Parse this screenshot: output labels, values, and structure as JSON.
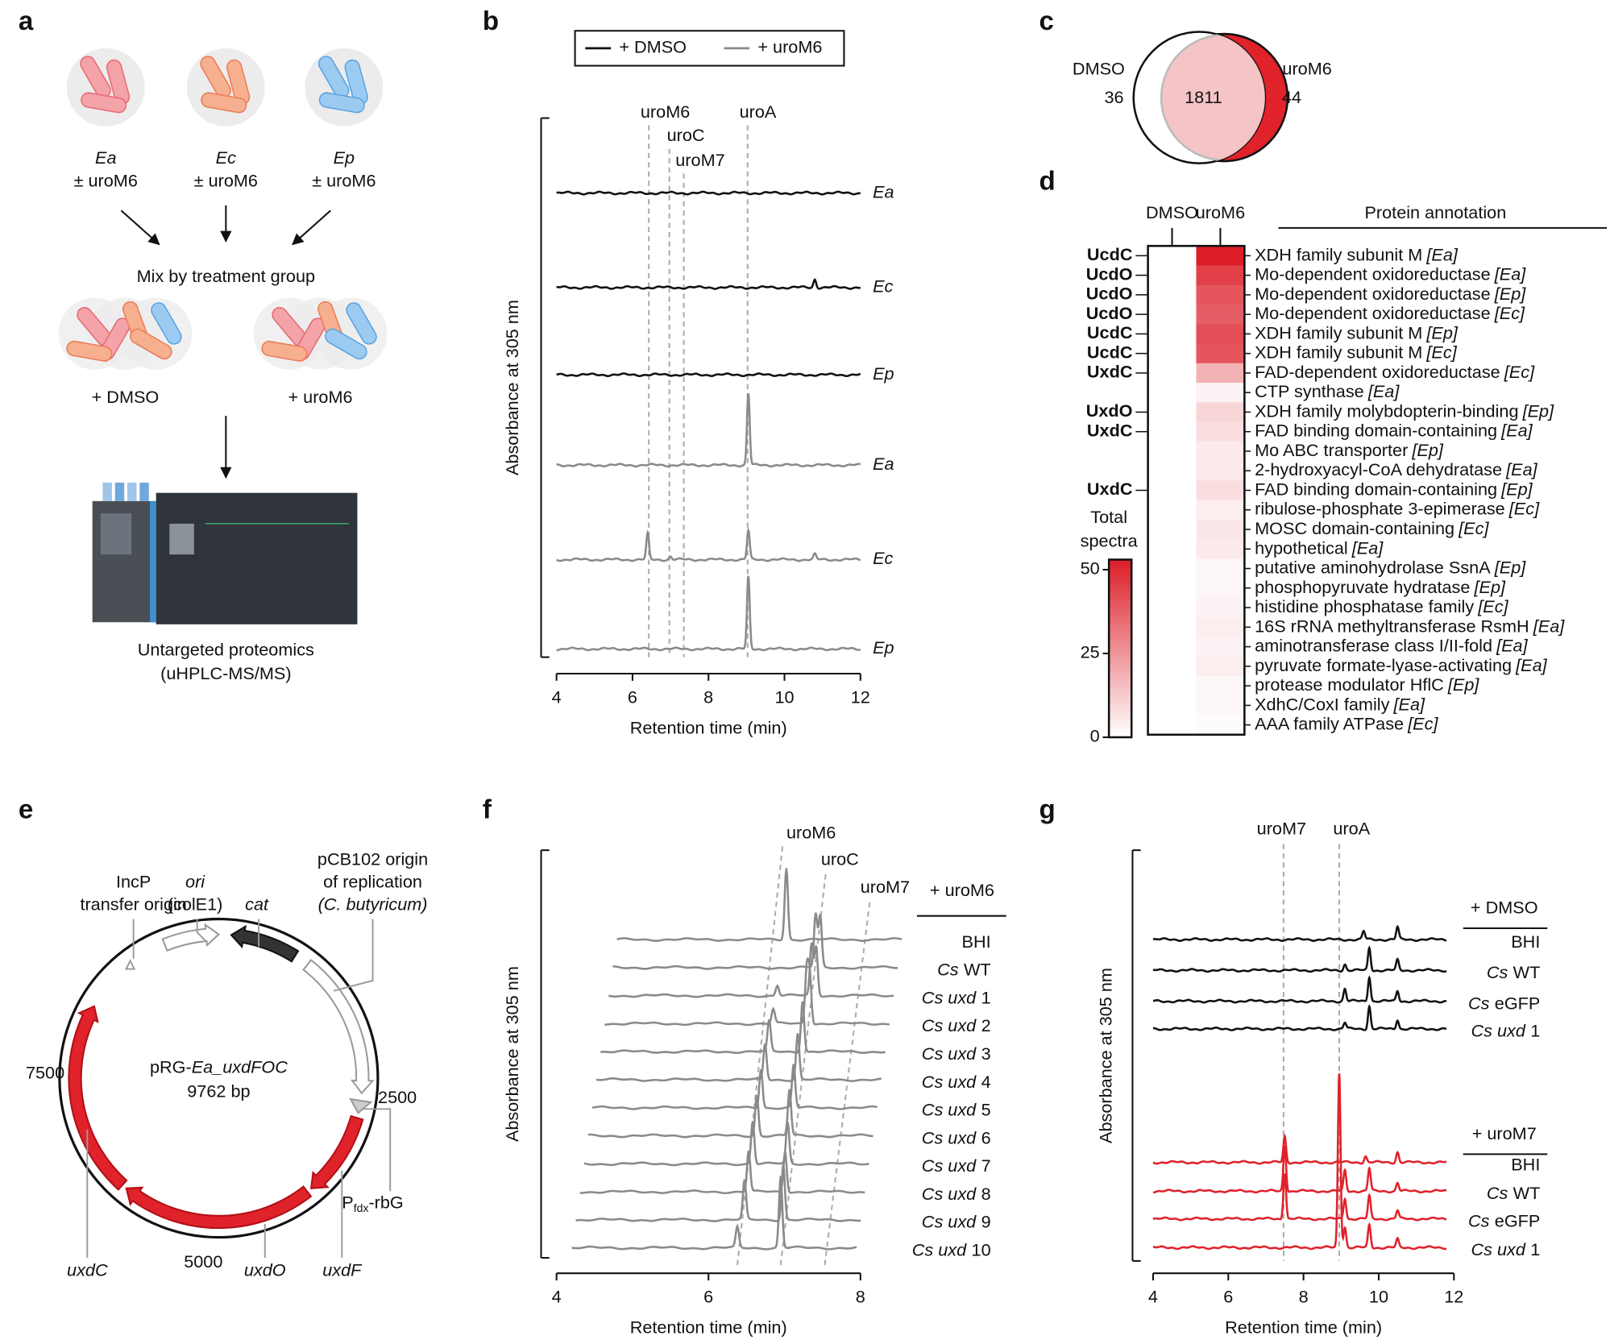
{
  "panels": {
    "a": {
      "letter": "a",
      "strains": [
        {
          "name": "Ea",
          "treatment": "± uroM6"
        },
        {
          "name": "Ec",
          "treatment": "± uroM6"
        },
        {
          "name": "Ep",
          "treatment": "± uroM6"
        }
      ],
      "mix_label": "Mix by treatment group",
      "groups": [
        "+ DMSO",
        "+ uroM6"
      ],
      "method": [
        "Untargeted proteomics",
        "(uHPLC-MS/MS)"
      ]
    },
    "b": {
      "letter": "b",
      "legend": [
        {
          "label": "+ DMSO",
          "color": "#111111"
        },
        {
          "label": "+ uroM6",
          "color": "#8a8a8a"
        }
      ],
      "ylabel": "Absorbance at 305 nm",
      "xlabel": "Retention time (min)",
      "xlim": [
        4,
        12
      ],
      "xticks": [
        4,
        6,
        8,
        10,
        12
      ],
      "trace_range": [
        4,
        12
      ],
      "markers": [
        {
          "label": "uroM6",
          "x": 6.43
        },
        {
          "label": "uroC",
          "x": 6.97
        },
        {
          "label": "uroM7",
          "x": 7.35
        },
        {
          "label": "uroA",
          "x": 9.03
        }
      ],
      "traces": [
        {
          "label": "Ea",
          "group": 0,
          "peaks": []
        },
        {
          "label": "Ec",
          "group": 0,
          "peaks": [
            [
              10.8,
              8
            ]
          ]
        },
        {
          "label": "Ep",
          "group": 0,
          "peaks": []
        },
        {
          "label": "Ea",
          "group": 1,
          "peaks": [
            [
              9.05,
              70
            ]
          ]
        },
        {
          "label": "Ec",
          "group": 1,
          "peaks": [
            [
              6.4,
              25
            ],
            [
              7.0,
              3
            ],
            [
              9.05,
              28
            ],
            [
              10.8,
              5
            ]
          ]
        },
        {
          "label": "Ep",
          "group": 1,
          "peaks": [
            [
              9.05,
              70
            ]
          ]
        }
      ]
    },
    "c": {
      "letter": "c",
      "left_label": "DMSO",
      "right_label": "uroM6",
      "left_only": 36,
      "shared": 1811,
      "right_only": 44
    },
    "d": {
      "letter": "d",
      "columns": [
        "DMSO",
        "uroM6"
      ],
      "annotation_header": "Protein annotation",
      "colorbar": {
        "label": [
          "Total",
          "spectra"
        ],
        "lim": [
          0,
          53
        ],
        "ticks": [
          0,
          25,
          50
        ],
        "color": "#dc1e28"
      },
      "rows": [
        {
          "gene": "UcdC",
          "gene_color": "#3b4a5a",
          "name": "XDH family subunit M",
          "species": "[Ea]",
          "values": [
            0,
            53
          ]
        },
        {
          "gene": "UcdO",
          "gene_color": "#3b4a5a",
          "name": "Mo-dependent oxidoreductase",
          "species": "[Ea]",
          "values": [
            0,
            45
          ]
        },
        {
          "gene": "UcdO",
          "gene_color": "#3b4a5a",
          "name": "Mo-dependent oxidoreductase",
          "species": "[Ep]",
          "values": [
            0,
            40
          ]
        },
        {
          "gene": "UcdO",
          "gene_color": "#3b4a5a",
          "name": "Mo-dependent oxidoreductase",
          "species": "[Ec]",
          "values": [
            0,
            38
          ]
        },
        {
          "gene": "UcdC",
          "gene_color": "#3b4a5a",
          "name": "XDH family subunit M",
          "species": "[Ep]",
          "values": [
            0,
            42
          ]
        },
        {
          "gene": "UcdC",
          "gene_color": "#3b4a5a",
          "name": "XDH family subunit M",
          "species": "[Ec]",
          "values": [
            0,
            40
          ]
        },
        {
          "gene": "UxdC",
          "gene_color": "#e0222a",
          "name": "FAD-dependent oxidoreductase",
          "species": "[Ec]",
          "values": [
            0,
            18
          ]
        },
        {
          "name": "CTP synthase",
          "species": "[Ea]",
          "values": [
            0,
            3
          ]
        },
        {
          "gene": "UxdO",
          "gene_color": "#e0222a",
          "name": "XDH family molybdopterin-binding",
          "species": "[Ep]",
          "values": [
            0,
            10
          ]
        },
        {
          "gene": "UxdC",
          "gene_color": "#e0222a",
          "name": "FAD binding domain-containing",
          "species": "[Ea]",
          "values": [
            0,
            8
          ]
        },
        {
          "name": "Mo ABC transporter",
          "species": "[Ep]",
          "values": [
            0,
            5
          ]
        },
        {
          "name": "2-hydroxyacyl-CoA dehydratase",
          "species": "[Ea]",
          "values": [
            0,
            5
          ]
        },
        {
          "gene": "UxdC",
          "gene_color": "#e0222a",
          "name": "FAD binding domain-containing",
          "species": "[Ep]",
          "values": [
            0,
            8
          ]
        },
        {
          "name": "ribulose-phosphate 3-epimerase",
          "species": "[Ec]",
          "values": [
            0,
            4
          ]
        },
        {
          "name": "MOSC domain-containing",
          "species": "[Ec]",
          "values": [
            0,
            6
          ]
        },
        {
          "name": "hypothetical",
          "species": "[Ea]",
          "values": [
            0,
            5
          ]
        },
        {
          "name": "putative aminohydrolase SsnA",
          "species": "[Ep]",
          "values": [
            0,
            2
          ]
        },
        {
          "name": "phosphopyruvate hydratase",
          "species": "[Ep]",
          "values": [
            0,
            2
          ]
        },
        {
          "name": "histidine phosphatase family",
          "species": "[Ec]",
          "values": [
            0,
            3
          ]
        },
        {
          "name": "16S rRNA methyltransferase RsmH",
          "species": "[Ea]",
          "values": [
            0,
            4
          ]
        },
        {
          "name": "aminotransferase class I/II-fold",
          "species": "[Ea]",
          "values": [
            0,
            3
          ]
        },
        {
          "name": "pyruvate formate-lyase-activating",
          "species": "[Ea]",
          "values": [
            0,
            4
          ]
        },
        {
          "name": "protease modulator HflC",
          "species": "[Ep]",
          "values": [
            0,
            2
          ]
        },
        {
          "name": "XdhC/CoxI family",
          "species": "[Ea]",
          "values": [
            0,
            2
          ]
        },
        {
          "name": "AAA family ATPase",
          "species": "[Ec]",
          "values": [
            0,
            1
          ]
        }
      ]
    },
    "e": {
      "letter": "e",
      "plasmid": {
        "prefix": "pRG-",
        "italic": "Ea_uxdFOC",
        "size": "9762 bp"
      },
      "scale": [
        "2500",
        "5000",
        "7500"
      ],
      "features": {
        "incp": [
          "IncP",
          "transfer origin"
        ],
        "ori": [
          "ori",
          "(colE1)"
        ],
        "cat": "cat",
        "pcb": [
          "pCB102 origin",
          "of replication",
          "(C. butyricum)"
        ],
        "pfdx": [
          "P",
          "fdx",
          "-rbG"
        ],
        "uxdC": "uxdC",
        "uxdO": "uxdO",
        "uxdF": "uxdF"
      }
    },
    "f": {
      "letter": "f",
      "ylabel": "Absorbance at 305 nm",
      "xlabel": "Retention time (min)",
      "xlim": [
        4,
        8
      ],
      "xticks": [
        4,
        6,
        8
      ],
      "trace_range": [
        4.2,
        7.95
      ],
      "header": "+ uroM6",
      "color": "#8a8a8a",
      "markers": [
        {
          "label": "uroM6",
          "x": 6.38
        },
        {
          "label": "uroC",
          "x": 6.95
        },
        {
          "label": "uroM7",
          "x": 7.53
        }
      ],
      "traces": [
        {
          "label": {
            "plain": "BHI"
          },
          "peaks": [
            [
              6.43,
              70
            ]
          ]
        },
        {
          "label": {
            "italic": "Cs",
            "plain": "WT"
          },
          "peaks": [
            [
              6.87,
              52
            ],
            [
              6.93,
              50
            ]
          ]
        },
        {
          "label": {
            "italic": "Cs uxd",
            "plain": "1"
          },
          "peaks": [
            [
              6.42,
              10
            ],
            [
              6.87,
              50
            ],
            [
              6.93,
              48
            ]
          ]
        },
        {
          "label": {
            "italic": "Cs uxd",
            "plain": "2"
          },
          "peaks": [
            [
              6.42,
              14
            ],
            [
              6.86,
              52
            ],
            [
              6.9,
              48
            ]
          ]
        },
        {
          "label": {
            "italic": "Cs uxd",
            "plain": "3"
          },
          "peaks": [
            [
              6.42,
              30
            ],
            [
              6.86,
              50
            ]
          ]
        },
        {
          "label": {
            "italic": "Cs uxd",
            "plain": "4"
          },
          "peaks": [
            [
              6.42,
              35
            ],
            [
              6.85,
              45
            ]
          ]
        },
        {
          "label": {
            "italic": "Cs uxd",
            "plain": "5"
          },
          "peaks": [
            [
              6.42,
              38
            ],
            [
              6.85,
              42
            ]
          ]
        },
        {
          "label": {
            "italic": "Cs uxd",
            "plain": "6"
          },
          "peaks": [
            [
              6.42,
              40
            ],
            [
              6.85,
              45
            ]
          ]
        },
        {
          "label": {
            "italic": "Cs uxd",
            "plain": "7"
          },
          "peaks": [
            [
              6.42,
              42
            ],
            [
              6.88,
              40
            ]
          ]
        },
        {
          "label": {
            "italic": "Cs uxd",
            "plain": "8"
          },
          "peaks": [
            [
              6.42,
              40
            ],
            [
              6.9,
              40
            ]
          ]
        },
        {
          "label": {
            "italic": "Cs uxd",
            "plain": "9"
          },
          "peaks": [
            [
              6.42,
              38
            ],
            [
              6.93,
              55
            ]
          ]
        },
        {
          "label": {
            "italic": "Cs uxd",
            "plain": "10"
          },
          "peaks": [
            [
              6.38,
              20
            ],
            [
              6.95,
              70
            ]
          ]
        }
      ]
    },
    "g": {
      "letter": "g",
      "ylabel": "Absorbance at 305 nm",
      "xlabel": "Retention time (min)",
      "xlim": [
        4,
        12
      ],
      "xticks": [
        4,
        6,
        8,
        10,
        12
      ],
      "trace_range": [
        4,
        11.8
      ],
      "markers": [
        {
          "label": "uroM7",
          "x": 7.47
        },
        {
          "label": "uroA",
          "x": 8.95
        }
      ],
      "groups": [
        {
          "header": "+ DMSO",
          "color": "#111111",
          "traces": [
            {
              "label": {
                "plain": "BHI"
              },
              "peaks": [
                [
                  9.6,
                  8
                ],
                [
                  10.5,
                  12
                ]
              ]
            },
            {
              "label": {
                "italic": "Cs",
                "plain": "WT"
              },
              "peaks": [
                [
                  9.1,
                  6
                ],
                [
                  9.75,
                  22
                ],
                [
                  10.5,
                  10
                ]
              ]
            },
            {
              "label": {
                "italic": "Cs",
                "plain": "eGFP"
              },
              "peaks": [
                [
                  9.1,
                  12
                ],
                [
                  9.75,
                  24
                ],
                [
                  10.5,
                  10
                ]
              ]
            },
            {
              "label": {
                "italic": "Cs uxd",
                "plain": "1"
              },
              "peaks": [
                [
                  9.1,
                  6
                ],
                [
                  9.75,
                  22
                ],
                [
                  10.5,
                  9
                ]
              ]
            }
          ]
        },
        {
          "header": "+ uroM7",
          "color": "#e0222a",
          "traces": [
            {
              "label": {
                "plain": "BHI"
              },
              "peaks": [
                [
                  7.5,
                  25
                ],
                [
                  9.65,
                  6
                ],
                [
                  10.5,
                  10
                ]
              ]
            },
            {
              "label": {
                "italic": "Cs",
                "plain": "WT"
              },
              "peaks": [
                [
                  7.5,
                  45
                ],
                [
                  9.1,
                  20
                ],
                [
                  9.75,
                  22
                ],
                [
                  10.5,
                  8
                ]
              ]
            },
            {
              "label": {
                "italic": "Cs",
                "plain": "eGFP"
              },
              "peaks": [
                [
                  7.5,
                  45
                ],
                [
                  9.1,
                  20
                ],
                [
                  9.75,
                  22
                ],
                [
                  10.5,
                  8
                ]
              ]
            },
            {
              "label": {
                "italic": "Cs uxd",
                "plain": "1"
              },
              "peaks": [
                [
                  8.95,
                  170
                ],
                [
                  9.1,
                  20
                ],
                [
                  9.75,
                  22
                ],
                [
                  10.5,
                  8
                ]
              ]
            }
          ]
        }
      ]
    }
  }
}
